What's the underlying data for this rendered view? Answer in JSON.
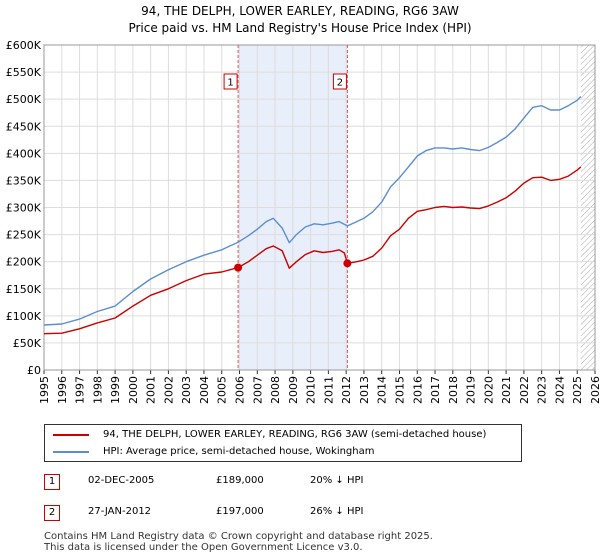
{
  "chart_data": {
    "type": "line",
    "title": "94, THE DELPH, LOWER EARLEY, READING, RG6 3AW",
    "subtitle": "Price paid vs. HM Land Registry's House Price Index (HPI)",
    "xlim": [
      1995,
      2026
    ],
    "ylim": [
      0,
      600000
    ],
    "y_ticks": [
      0,
      50000,
      100000,
      150000,
      200000,
      250000,
      300000,
      350000,
      400000,
      450000,
      500000,
      550000,
      600000
    ],
    "y_tick_labels": [
      "£0",
      "£50K",
      "£100K",
      "£150K",
      "£200K",
      "£250K",
      "£300K",
      "£350K",
      "£400K",
      "£450K",
      "£500K",
      "£550K",
      "£600K"
    ],
    "x_ticks": [
      1995,
      1996,
      1997,
      1998,
      1999,
      2000,
      2001,
      2002,
      2003,
      2004,
      2005,
      2006,
      2007,
      2008,
      2009,
      2010,
      2011,
      2012,
      2013,
      2014,
      2015,
      2016,
      2017,
      2018,
      2019,
      2020,
      2021,
      2022,
      2023,
      2024,
      2025,
      2026
    ],
    "x_tick_labels": [
      "1995",
      "1996",
      "1997",
      "1998",
      "1999",
      "2000",
      "2001",
      "2002",
      "2003",
      "2004",
      "2005",
      "2006",
      "2007",
      "2008",
      "2009",
      "2010",
      "2011",
      "2012",
      "2013",
      "2014",
      "2015",
      "2016",
      "2017",
      "2018",
      "2019",
      "2020",
      "2021",
      "2022",
      "2023",
      "2024",
      "2025",
      "2026"
    ],
    "grid": true,
    "shaded_period": [
      2005.92,
      2012.07
    ],
    "future_hatch_from": 2025.2,
    "series": [
      {
        "name": "94, THE DELPH, LOWER EARLEY, READING, RG6 3AW (semi-detached house)",
        "color": "#cc0000",
        "x": [
          1995.0,
          1996.0,
          1997.0,
          1998.0,
          1999.0,
          2000.0,
          2001.0,
          2002.0,
          2003.0,
          2004.0,
          2005.0,
          2005.92,
          2006.5,
          2007.0,
          2007.5,
          2007.9,
          2008.4,
          2008.8,
          2009.2,
          2009.7,
          2010.2,
          2010.7,
          2011.2,
          2011.6,
          2011.9,
          2012.07,
          2012.6,
          2013.0,
          2013.5,
          2014.0,
          2014.5,
          2015.0,
          2015.5,
          2016.0,
          2016.5,
          2017.0,
          2017.5,
          2018.0,
          2018.5,
          2019.0,
          2019.5,
          2020.0,
          2020.5,
          2021.0,
          2021.5,
          2022.0,
          2022.5,
          2023.0,
          2023.5,
          2024.0,
          2024.5,
          2025.0,
          2025.2
        ],
        "values": [
          67000,
          68000,
          76000,
          87000,
          96000,
          118000,
          138000,
          150000,
          165000,
          177000,
          181000,
          189000,
          200000,
          212000,
          224000,
          229000,
          220000,
          188000,
          200000,
          213000,
          220000,
          217000,
          219000,
          222000,
          216000,
          197000,
          200000,
          203000,
          210000,
          225000,
          248000,
          260000,
          280000,
          293000,
          296000,
          300000,
          302000,
          300000,
          301000,
          299000,
          298000,
          303000,
          310000,
          318000,
          330000,
          345000,
          355000,
          356000,
          350000,
          352000,
          358000,
          369000,
          375000
        ]
      },
      {
        "name": "HPI: Average price, semi-detached house, Wokingham",
        "color": "#5b8ed0",
        "x": [
          1995.0,
          1996.0,
          1997.0,
          1998.0,
          1999.0,
          2000.0,
          2001.0,
          2002.0,
          2003.0,
          2004.0,
          2005.0,
          2005.92,
          2006.5,
          2007.0,
          2007.5,
          2007.9,
          2008.4,
          2008.8,
          2009.2,
          2009.7,
          2010.2,
          2010.7,
          2011.2,
          2011.6,
          2012.07,
          2012.6,
          2013.0,
          2013.5,
          2014.0,
          2014.5,
          2015.0,
          2015.5,
          2016.0,
          2016.5,
          2017.0,
          2017.5,
          2018.0,
          2018.5,
          2019.0,
          2019.5,
          2020.0,
          2020.5,
          2021.0,
          2021.5,
          2022.0,
          2022.5,
          2023.0,
          2023.5,
          2024.0,
          2024.5,
          2025.0,
          2025.2
        ],
        "values": [
          83000,
          85000,
          94000,
          108000,
          118000,
          145000,
          168000,
          185000,
          200000,
          212000,
          222000,
          236000,
          248000,
          260000,
          274000,
          280000,
          262000,
          235000,
          250000,
          264000,
          270000,
          268000,
          271000,
          274000,
          266000,
          274000,
          280000,
          292000,
          310000,
          338000,
          355000,
          375000,
          395000,
          405000,
          410000,
          410000,
          408000,
          410000,
          407000,
          405000,
          411000,
          420000,
          430000,
          445000,
          465000,
          485000,
          488000,
          480000,
          480000,
          488000,
          498000,
          505000
        ]
      }
    ],
    "sales": [
      {
        "label": "1",
        "x": 2005.92,
        "value": 189000
      },
      {
        "label": "2",
        "x": 2012.07,
        "value": 197000
      }
    ]
  },
  "legend": {
    "red_label": "94, THE DELPH, LOWER EARLEY, READING, RG6 3AW (semi-detached house)",
    "blue_label": "HPI: Average price, semi-detached house, Wokingham",
    "red_color": "#cc0000",
    "blue_color": "#5b8ed0"
  },
  "sales_table": [
    {
      "label": "1",
      "date": "02-DEC-2005",
      "price": "£189,000",
      "hpi": "20% ↓ HPI"
    },
    {
      "label": "2",
      "date": "27-JAN-2012",
      "price": "£197,000",
      "hpi": "26% ↓ HPI"
    }
  ],
  "footer": {
    "line1": "Contains HM Land Registry data © Crown copyright and database right 2025.",
    "line2": "This data is licensed under the Open Government Licence v3.0."
  }
}
